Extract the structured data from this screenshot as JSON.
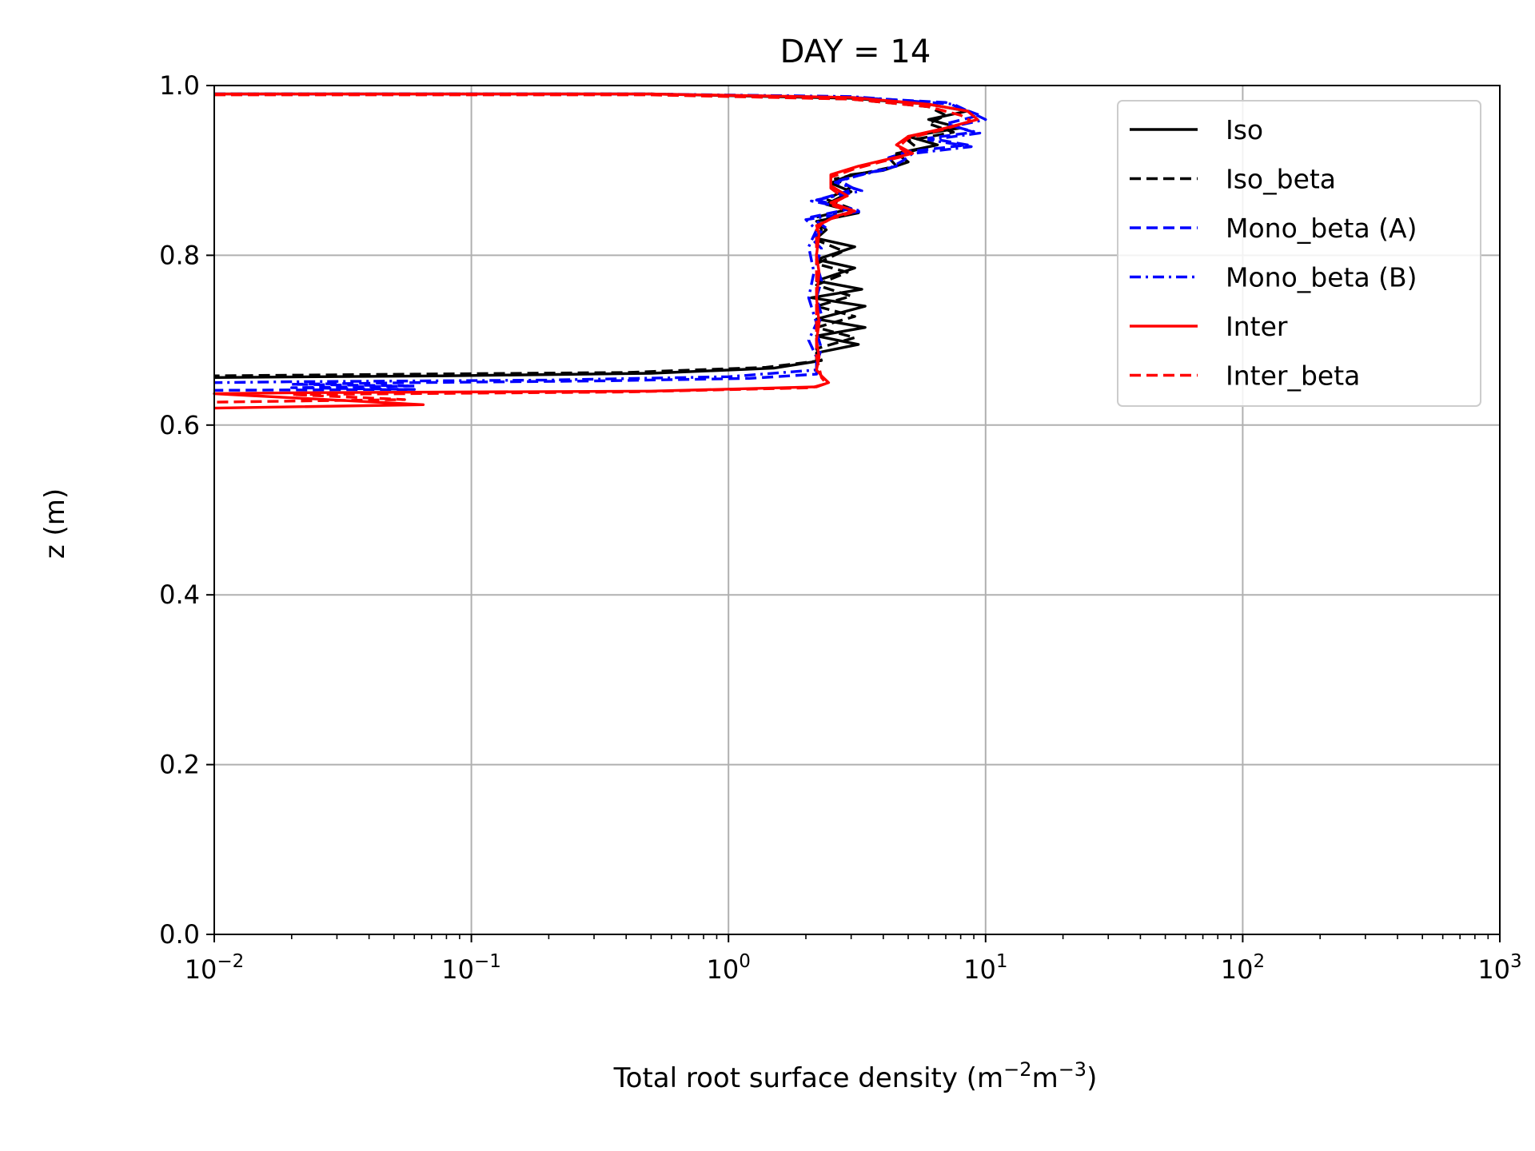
{
  "chart_data": {
    "type": "line",
    "title": "DAY = 14",
    "xlabel": "Total root surface density (m",
    "xlabel_sup1": "−2",
    "xlabel_mid": "m",
    "xlabel_sup2": "−3",
    "xlabel_end": ")",
    "ylabel": "z (m)",
    "x_scale": "log",
    "xlim": [
      0.01,
      1000
    ],
    "ylim": [
      0.0,
      1.0
    ],
    "grid": true,
    "legend_position": "top-right",
    "x_ticks": [
      {
        "value": 0.01,
        "base": "10",
        "exp": "−2"
      },
      {
        "value": 0.1,
        "base": "10",
        "exp": "−1"
      },
      {
        "value": 1,
        "base": "10",
        "exp": "0"
      },
      {
        "value": 10,
        "base": "10",
        "exp": "1"
      },
      {
        "value": 100,
        "base": "10",
        "exp": "2"
      },
      {
        "value": 1000,
        "base": "10",
        "exp": "3"
      }
    ],
    "y_ticks": [
      "0.0",
      "0.2",
      "0.4",
      "0.6",
      "0.8",
      "1.0"
    ],
    "series": [
      {
        "name": "Iso",
        "color": "#000000",
        "dash": "solid",
        "points": [
          [
            0.01,
            0.99
          ],
          [
            0.5,
            0.99
          ],
          [
            3,
            0.985
          ],
          [
            6,
            0.978
          ],
          [
            8.5,
            0.97
          ],
          [
            6,
            0.96
          ],
          [
            8,
            0.95
          ],
          [
            5,
            0.94
          ],
          [
            6.5,
            0.93
          ],
          [
            4.5,
            0.92
          ],
          [
            5,
            0.91
          ],
          [
            4,
            0.9
          ],
          [
            3,
            0.895
          ],
          [
            2.5,
            0.885
          ],
          [
            3,
            0.875
          ],
          [
            2.4,
            0.86
          ],
          [
            3.2,
            0.85
          ],
          [
            2.2,
            0.84
          ],
          [
            2.4,
            0.83
          ],
          [
            2.2,
            0.82
          ],
          [
            3.1,
            0.81
          ],
          [
            2.2,
            0.795
          ],
          [
            3.1,
            0.785
          ],
          [
            2.2,
            0.77
          ],
          [
            3.3,
            0.76
          ],
          [
            2.1,
            0.75
          ],
          [
            3.4,
            0.74
          ],
          [
            2.2,
            0.725
          ],
          [
            3.4,
            0.715
          ],
          [
            2.2,
            0.705
          ],
          [
            3.2,
            0.695
          ],
          [
            2.2,
            0.685
          ],
          [
            2.2,
            0.675
          ],
          [
            1.5,
            0.667
          ],
          [
            0.5,
            0.661
          ],
          [
            0.08,
            0.658
          ],
          [
            0.01,
            0.656
          ]
        ]
      },
      {
        "name": "Iso_beta",
        "color": "#000000",
        "dash": "dashed",
        "points": [
          [
            0.01,
            0.99
          ],
          [
            0.5,
            0.99
          ],
          [
            3,
            0.984
          ],
          [
            6,
            0.975
          ],
          [
            7,
            0.965
          ],
          [
            6,
            0.955
          ],
          [
            7.5,
            0.945
          ],
          [
            5,
            0.935
          ],
          [
            5.5,
            0.925
          ],
          [
            4.2,
            0.915
          ],
          [
            4.5,
            0.905
          ],
          [
            3.5,
            0.898
          ],
          [
            2.6,
            0.89
          ],
          [
            3,
            0.88
          ],
          [
            2.4,
            0.866
          ],
          [
            3,
            0.855
          ],
          [
            2.2,
            0.845
          ],
          [
            2.3,
            0.83
          ],
          [
            2.2,
            0.818
          ],
          [
            2.8,
            0.805
          ],
          [
            2.2,
            0.79
          ],
          [
            2.9,
            0.78
          ],
          [
            2.2,
            0.765
          ],
          [
            3,
            0.752
          ],
          [
            2.2,
            0.74
          ],
          [
            3.1,
            0.728
          ],
          [
            2.2,
            0.715
          ],
          [
            3.1,
            0.703
          ],
          [
            2.2,
            0.69
          ],
          [
            2.3,
            0.676
          ],
          [
            1.4,
            0.668
          ],
          [
            0.4,
            0.662
          ],
          [
            0.06,
            0.66
          ],
          [
            0.01,
            0.658
          ]
        ]
      },
      {
        "name": "Mono_beta (A)",
        "color": "#0000ff",
        "dash": "dashed",
        "points": [
          [
            0.01,
            0.99
          ],
          [
            0.5,
            0.99
          ],
          [
            3,
            0.986
          ],
          [
            7,
            0.98
          ],
          [
            9.5,
            0.965
          ],
          [
            7,
            0.955
          ],
          [
            9,
            0.945
          ],
          [
            6,
            0.938
          ],
          [
            8.5,
            0.93
          ],
          [
            5,
            0.922
          ],
          [
            4.2,
            0.915
          ],
          [
            4.5,
            0.905
          ],
          [
            3.6,
            0.898
          ],
          [
            2.7,
            0.888
          ],
          [
            3.1,
            0.878
          ],
          [
            2.2,
            0.865
          ],
          [
            3,
            0.855
          ],
          [
            2.1,
            0.845
          ],
          [
            2.4,
            0.832
          ],
          [
            2.1,
            0.82
          ],
          [
            2.3,
            0.808
          ],
          [
            2.2,
            0.79
          ],
          [
            2.3,
            0.77
          ],
          [
            2.2,
            0.75
          ],
          [
            2.3,
            0.73
          ],
          [
            2.2,
            0.71
          ],
          [
            2.3,
            0.69
          ],
          [
            2.2,
            0.672
          ],
          [
            2.2,
            0.66
          ],
          [
            1.2,
            0.655
          ],
          [
            0.3,
            0.652
          ],
          [
            0.06,
            0.65
          ],
          [
            0.02,
            0.648
          ],
          [
            0.06,
            0.646
          ],
          [
            0.02,
            0.644
          ],
          [
            0.06,
            0.642
          ],
          [
            0.01,
            0.641
          ]
        ]
      },
      {
        "name": "Mono_beta (B)",
        "color": "#0000ff",
        "dash": "dashdot",
        "points": [
          [
            0.01,
            0.99
          ],
          [
            0.5,
            0.99
          ],
          [
            3,
            0.987
          ],
          [
            7.5,
            0.978
          ],
          [
            10,
            0.96
          ],
          [
            7.5,
            0.952
          ],
          [
            9.5,
            0.944
          ],
          [
            6,
            0.936
          ],
          [
            8.8,
            0.928
          ],
          [
            5.2,
            0.92
          ],
          [
            4.8,
            0.912
          ],
          [
            4.2,
            0.902
          ],
          [
            3.2,
            0.894
          ],
          [
            2.6,
            0.886
          ],
          [
            3.3,
            0.876
          ],
          [
            2.1,
            0.864
          ],
          [
            3.3,
            0.852
          ],
          [
            2,
            0.842
          ],
          [
            2.2,
            0.83
          ],
          [
            2.05,
            0.81
          ],
          [
            2.15,
            0.78
          ],
          [
            2.05,
            0.75
          ],
          [
            2.2,
            0.72
          ],
          [
            2.05,
            0.7
          ],
          [
            2.2,
            0.68
          ],
          [
            2.2,
            0.665
          ],
          [
            1,
            0.657
          ],
          [
            0.2,
            0.653
          ],
          [
            0.02,
            0.651
          ],
          [
            0.01,
            0.65
          ]
        ]
      },
      {
        "name": "Inter",
        "color": "#ff0000",
        "dash": "solid",
        "points": [
          [
            0.01,
            0.99
          ],
          [
            0.5,
            0.99
          ],
          [
            3,
            0.986
          ],
          [
            6,
            0.978
          ],
          [
            8.5,
            0.97
          ],
          [
            9.3,
            0.96
          ],
          [
            7,
            0.95
          ],
          [
            5,
            0.94
          ],
          [
            4.5,
            0.93
          ],
          [
            5.2,
            0.92
          ],
          [
            4,
            0.912
          ],
          [
            3.2,
            0.905
          ],
          [
            2.5,
            0.895
          ],
          [
            2.5,
            0.882
          ],
          [
            2.9,
            0.87
          ],
          [
            2.5,
            0.862
          ],
          [
            3.1,
            0.852
          ],
          [
            2.6,
            0.846
          ],
          [
            2.4,
            0.84
          ],
          [
            2.2,
            0.835
          ],
          [
            2.25,
            0.825
          ],
          [
            2.2,
            0.8
          ],
          [
            2.25,
            0.78
          ],
          [
            2.2,
            0.75
          ],
          [
            2.25,
            0.72
          ],
          [
            2.2,
            0.7
          ],
          [
            2.25,
            0.68
          ],
          [
            2.2,
            0.665
          ],
          [
            2.3,
            0.658
          ],
          [
            2.45,
            0.65
          ],
          [
            2.2,
            0.645
          ],
          [
            0.5,
            0.64
          ],
          [
            0.02,
            0.638
          ],
          [
            0.01,
            0.637
          ],
          [
            0.065,
            0.624
          ],
          [
            0.01,
            0.62
          ]
        ]
      },
      {
        "name": "Inter_beta",
        "color": "#ff0000",
        "dash": "dashed",
        "points": [
          [
            0.01,
            0.989
          ],
          [
            0.5,
            0.989
          ],
          [
            3,
            0.984
          ],
          [
            6,
            0.975
          ],
          [
            8,
            0.965
          ],
          [
            8.8,
            0.958
          ],
          [
            6.8,
            0.948
          ],
          [
            5,
            0.938
          ],
          [
            4.6,
            0.928
          ],
          [
            5,
            0.918
          ],
          [
            3.9,
            0.91
          ],
          [
            3.1,
            0.902
          ],
          [
            2.5,
            0.892
          ],
          [
            2.5,
            0.879
          ],
          [
            2.8,
            0.868
          ],
          [
            2.5,
            0.86
          ],
          [
            3,
            0.85
          ],
          [
            2.5,
            0.843
          ],
          [
            2.3,
            0.837
          ],
          [
            2.2,
            0.83
          ],
          [
            2.2,
            0.8
          ],
          [
            2.2,
            0.76
          ],
          [
            2.2,
            0.72
          ],
          [
            2.2,
            0.68
          ],
          [
            2.3,
            0.656
          ],
          [
            2.4,
            0.649
          ],
          [
            2.1,
            0.644
          ],
          [
            0.4,
            0.639
          ],
          [
            0.02,
            0.636
          ],
          [
            0.055,
            0.63
          ],
          [
            0.01,
            0.627
          ]
        ]
      }
    ]
  }
}
